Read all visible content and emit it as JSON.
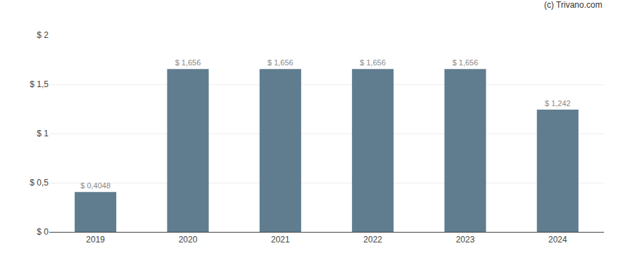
{
  "chart_data": {
    "type": "bar",
    "categories": [
      "2019",
      "2020",
      "2021",
      "2022",
      "2023",
      "2024"
    ],
    "values": [
      0.4048,
      1.656,
      1.656,
      1.656,
      1.656,
      1.242
    ],
    "value_labels": [
      "$ 0,4048",
      "$ 1,656",
      "$ 1,656",
      "$ 1,656",
      "$ 1,656",
      "$ 1,242"
    ],
    "data_labels": true,
    "color": "#607d8f",
    "ylim": [
      0,
      2.0
    ],
    "yticks": [
      {
        "value": 0,
        "label": "$ 0"
      },
      {
        "value": 0.5,
        "label": "$ 0,5"
      },
      {
        "value": 1.0,
        "label": "$ 1"
      },
      {
        "value": 1.5,
        "label": "$ 1,5"
      },
      {
        "value": 2.0,
        "label": "$ 2"
      }
    ],
    "grid": true,
    "annotations": [
      "(c) Trivano.com"
    ]
  }
}
